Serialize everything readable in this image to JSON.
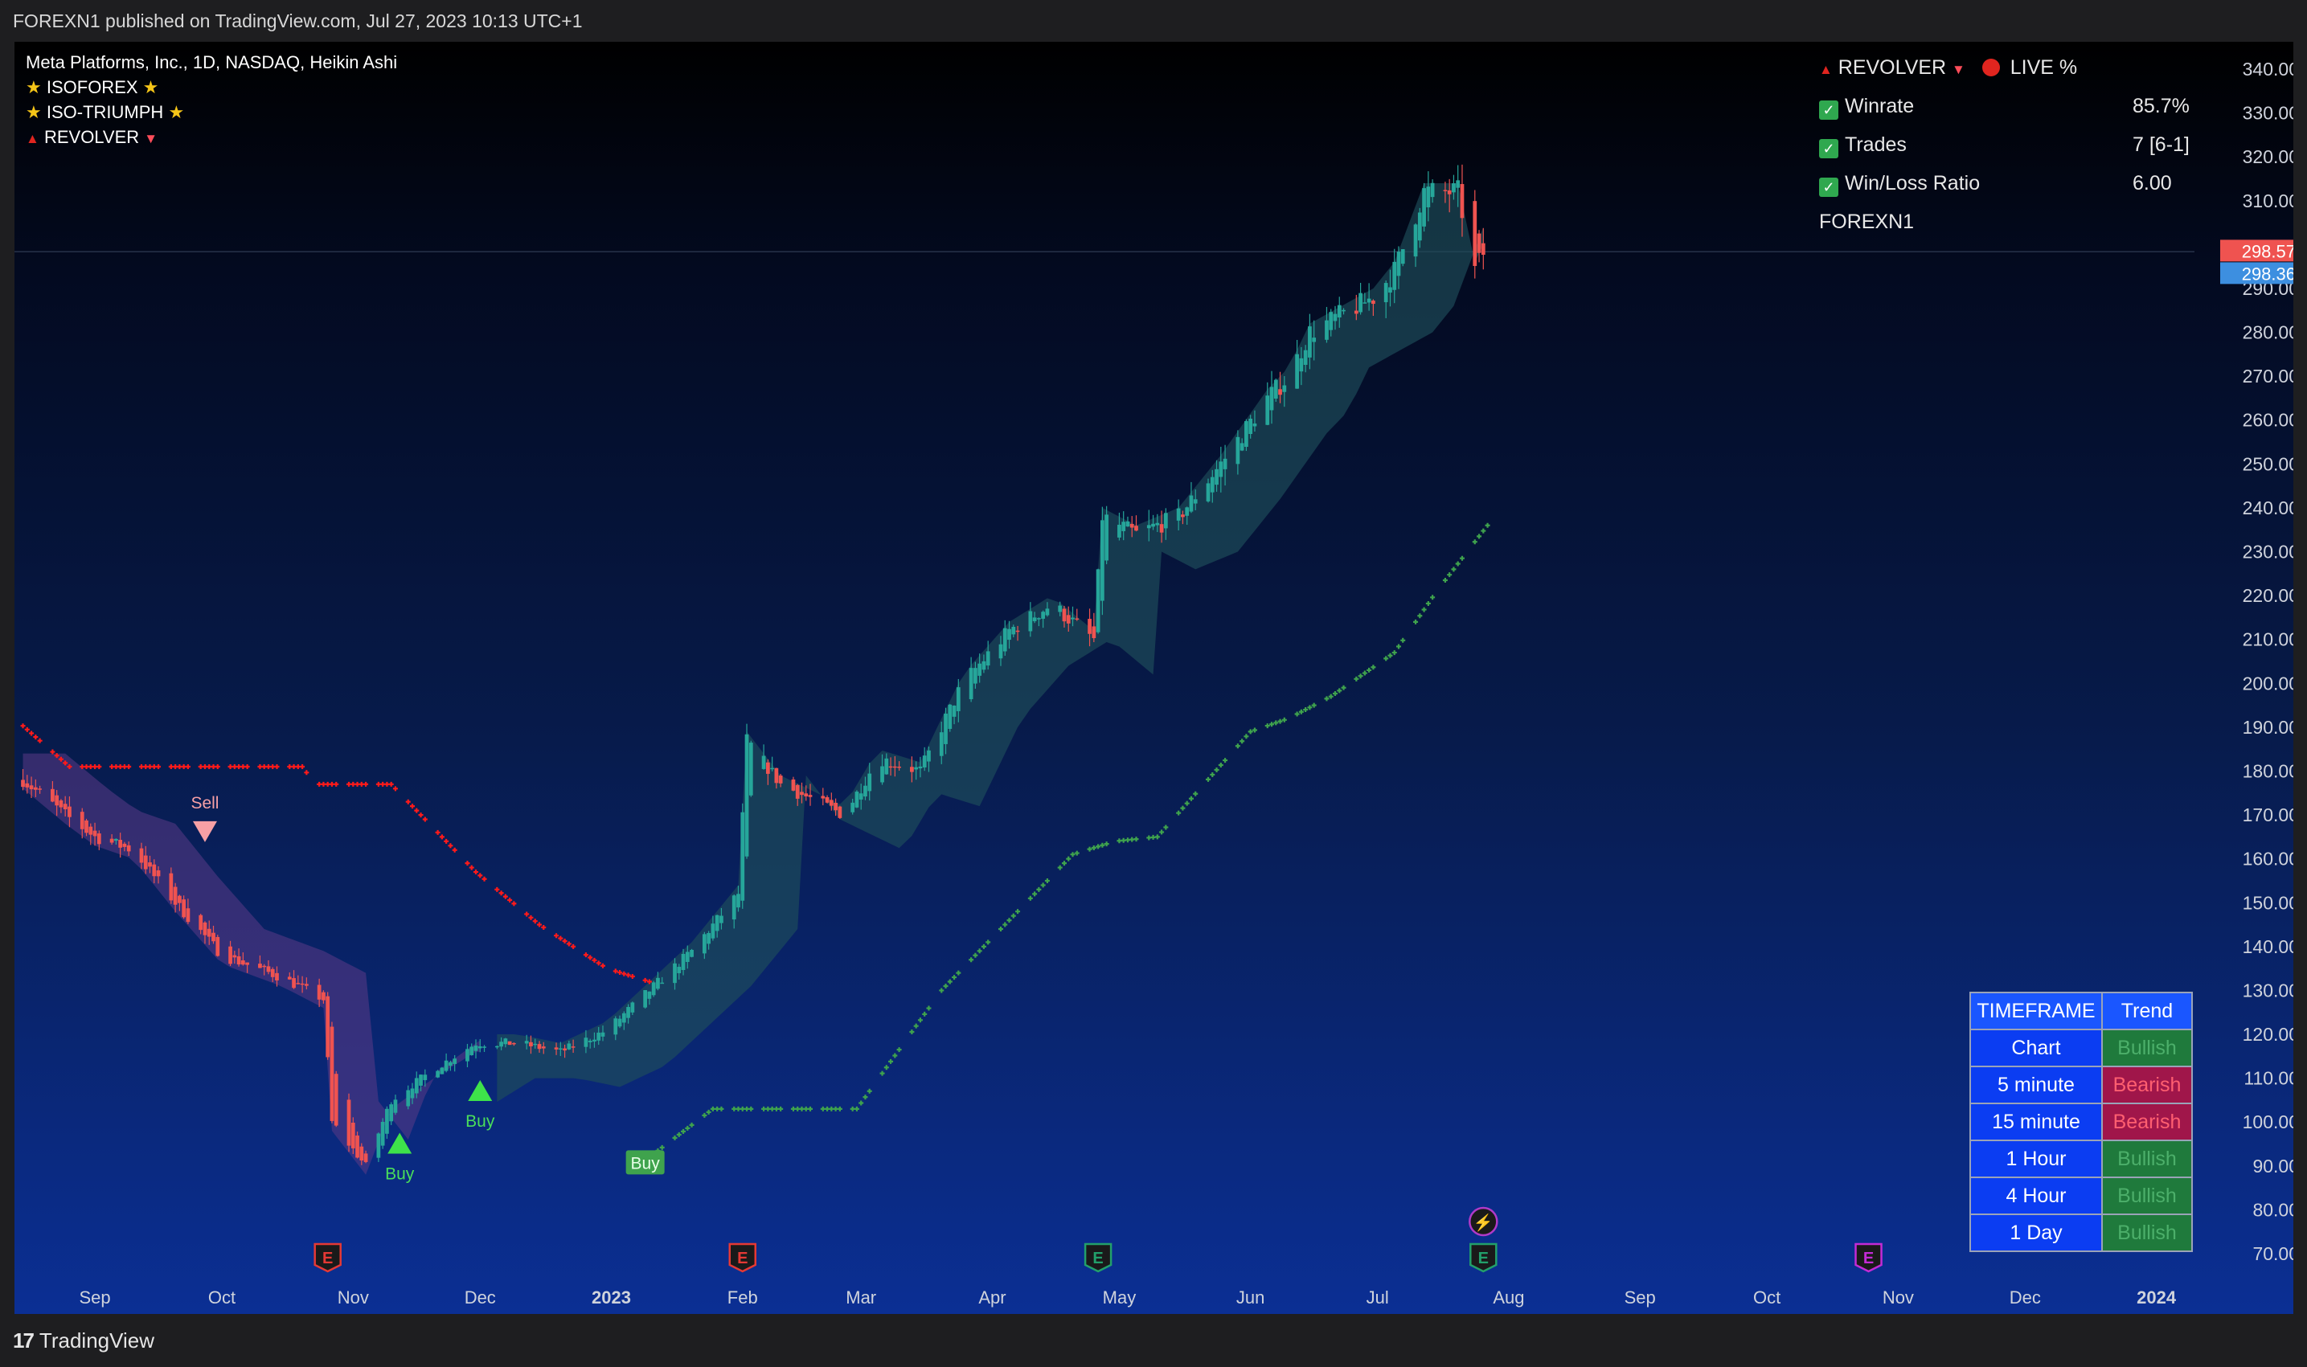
{
  "header": {
    "published": "FOREXN1 published on TradingView.com, Jul 27, 2023 10:13 UTC+1"
  },
  "footer": {
    "brand": "TradingView"
  },
  "legend": {
    "symbol": "Meta Platforms, Inc., 1D, NASDAQ, Heikin Ashi",
    "indicator1": "ISOFOREX",
    "indicator2": "ISO-TRIUMPH",
    "indicator3": "REVOLVER"
  },
  "stats": {
    "title": "REVOLVER",
    "live": "LIVE %",
    "rows": [
      {
        "label": "Winrate",
        "value": "85.7%"
      },
      {
        "label": "Trades",
        "value": "7 [6-1]"
      },
      {
        "label": "Win/Loss Ratio",
        "value": "6.00"
      }
    ],
    "author": "FOREXN1"
  },
  "trend_table": {
    "header": [
      "TIMEFRAME",
      "Trend"
    ],
    "rows": [
      {
        "tf": "Chart",
        "trend": "Bullish"
      },
      {
        "tf": "5 minute",
        "trend": "Bearish"
      },
      {
        "tf": "15 minute",
        "trend": "Bearish"
      },
      {
        "tf": "1 Hour",
        "trend": "Bullish"
      },
      {
        "tf": "4 Hour",
        "trend": "Bullish"
      },
      {
        "tf": "1 Day",
        "trend": "Bullish"
      }
    ]
  },
  "colors": {
    "bull": "#26a69a",
    "bear": "#ef5350",
    "buy_marker": "#3ee24a",
    "sell_marker": "#f7a0a5",
    "trail_bear": "#ff1a1a",
    "trail_bull": "#3fa34d",
    "cloud_bear": "#5b3a86",
    "cloud_bull": "#1f4f5a"
  },
  "icons": [
    "earnings-icon",
    "dividend-lightning-icon",
    "checkbox-icon",
    "triangle-up-icon",
    "triangle-down-icon",
    "star-icon",
    "red-dot-icon"
  ],
  "chart_data": {
    "type": "candlestick",
    "chart_style": "Heikin Ashi",
    "y_axis_ticks": [
      340,
      330,
      320,
      310,
      300,
      290,
      280,
      270,
      260,
      250,
      240,
      230,
      220,
      210,
      200,
      190,
      180,
      170,
      160,
      150,
      140,
      130,
      120,
      110,
      100,
      90,
      80,
      70
    ],
    "y_axis_labels": [
      "340.00",
      "330.00",
      "320.00",
      "310.00",
      "290.00",
      "280.00",
      "270.00",
      "260.00",
      "250.00",
      "240.00",
      "230.00",
      "220.00",
      "210.00",
      "200.00",
      "190.00",
      "180.00",
      "170.00",
      "160.00",
      "150.00",
      "140.00",
      "130.00",
      "120.00",
      "110.00",
      "100.00",
      "90.00",
      "80.00",
      "70.00"
    ],
    "ylim": [
      65,
      345
    ],
    "x_axis_labels": [
      {
        "label": "Sep",
        "date": "2022-09-01"
      },
      {
        "label": "Oct",
        "date": "2022-10-01"
      },
      {
        "label": "Nov",
        "date": "2022-11-01"
      },
      {
        "label": "Dec",
        "date": "2022-12-01"
      },
      {
        "label": "2023",
        "date": "2023-01-01"
      },
      {
        "label": "Feb",
        "date": "2023-02-01"
      },
      {
        "label": "Mar",
        "date": "2023-03-01"
      },
      {
        "label": "Apr",
        "date": "2023-04-01"
      },
      {
        "label": "May",
        "date": "2023-05-01"
      },
      {
        "label": "Jun",
        "date": "2023-06-01"
      },
      {
        "label": "Jul",
        "date": "2023-07-01"
      },
      {
        "label": "Aug",
        "date": "2023-08-01"
      },
      {
        "label": "Sep",
        "date": "2023-09-01"
      },
      {
        "label": "Oct",
        "date": "2023-10-01"
      },
      {
        "label": "Nov",
        "date": "2023-11-01"
      },
      {
        "label": "Dec",
        "date": "2023-12-01"
      },
      {
        "label": "2024",
        "date": "2024-01-01"
      }
    ],
    "xlim": [
      "2022-08-13",
      "2024-01-10"
    ],
    "price_labels": [
      {
        "value": 298.57,
        "text": "298.57",
        "color": "#ef5350"
      },
      {
        "value": 298.36,
        "text": "298.36",
        "color": "#3d8fe0"
      }
    ],
    "close_path": [
      [
        "2022-08-15",
        178
      ],
      [
        "2022-08-25",
        170
      ],
      [
        "2022-09-01",
        165
      ],
      [
        "2022-09-10",
        162
      ],
      [
        "2022-09-20",
        150
      ],
      [
        "2022-10-01",
        138
      ],
      [
        "2022-10-15",
        133
      ],
      [
        "2022-10-25",
        128
      ],
      [
        "2022-10-27",
        100
      ],
      [
        "2022-11-04",
        90
      ],
      [
        "2022-11-10",
        105
      ],
      [
        "2022-11-20",
        112
      ],
      [
        "2022-11-30",
        118
      ],
      [
        "2022-12-10",
        118
      ],
      [
        "2022-12-20",
        116
      ],
      [
        "2022-12-31",
        121
      ],
      [
        "2023-01-10",
        130
      ],
      [
        "2023-01-20",
        139
      ],
      [
        "2023-01-31",
        152
      ],
      [
        "2023-02-02",
        187
      ],
      [
        "2023-02-10",
        177
      ],
      [
        "2023-02-25",
        170
      ],
      [
        "2023-03-05",
        183
      ],
      [
        "2023-03-15",
        180
      ],
      [
        "2023-03-25",
        200
      ],
      [
        "2023-04-05",
        212
      ],
      [
        "2023-04-15",
        218
      ],
      [
        "2023-04-25",
        210
      ],
      [
        "2023-04-27",
        238
      ],
      [
        "2023-05-05",
        234
      ],
      [
        "2023-05-15",
        238
      ],
      [
        "2023-05-25",
        250
      ],
      [
        "2023-06-05",
        265
      ],
      [
        "2023-06-10",
        270
      ],
      [
        "2023-06-15",
        280
      ],
      [
        "2023-06-30",
        288
      ],
      [
        "2023-07-05",
        294
      ],
      [
        "2023-07-12",
        312
      ],
      [
        "2023-07-20",
        312
      ],
      [
        "2023-07-24",
        294
      ],
      [
        "2023-07-26",
        298
      ]
    ],
    "revolver_trail_bearish": [
      [
        "2022-08-13",
        192
      ],
      [
        "2022-08-26",
        181
      ],
      [
        "2022-09-20",
        181
      ],
      [
        "2022-10-20",
        181
      ],
      [
        "2022-10-23",
        177
      ],
      [
        "2022-11-10",
        177
      ],
      [
        "2022-11-30",
        157
      ],
      [
        "2022-12-15",
        145
      ],
      [
        "2022-12-31",
        135
      ],
      [
        "2023-01-10",
        132
      ]
    ],
    "revolver_trail_bullish": [
      [
        "2023-01-10",
        92
      ],
      [
        "2023-01-25",
        103
      ],
      [
        "2023-02-28",
        103
      ],
      [
        "2023-03-20",
        130
      ],
      [
        "2023-04-20",
        161
      ],
      [
        "2023-04-30",
        164
      ],
      [
        "2023-05-10",
        165
      ],
      [
        "2023-06-01",
        189
      ],
      [
        "2023-06-10",
        192
      ],
      [
        "2023-06-20",
        197
      ],
      [
        "2023-07-05",
        207
      ],
      [
        "2023-07-15",
        221
      ],
      [
        "2023-07-27",
        236
      ]
    ],
    "signals": [
      {
        "type": "Sell",
        "date": "2022-09-27",
        "price": 166
      },
      {
        "type": "Buy",
        "date": "2022-11-12",
        "price": 95
      },
      {
        "type": "Buy",
        "date": "2022-12-01",
        "price": 107
      },
      {
        "type": "Buy",
        "date": "2023-01-09",
        "price": 91
      }
    ],
    "event_icons": [
      {
        "label": "E",
        "date": "2022-10-26",
        "color": "#e53935",
        "row": 2
      },
      {
        "label": "E",
        "date": "2023-02-01",
        "color": "#e53935",
        "row": 2
      },
      {
        "label": "E",
        "date": "2023-04-26",
        "color": "#22a06b",
        "row": 2
      },
      {
        "label": "E",
        "date": "2023-07-26",
        "color": "#22a06b",
        "row": 2
      },
      {
        "label": "⚡",
        "date": "2023-07-26",
        "color": "#b03ac8",
        "row": 1
      },
      {
        "label": "E",
        "date": "2023-10-25",
        "color": "#c42bd6",
        "row": 2
      }
    ]
  }
}
